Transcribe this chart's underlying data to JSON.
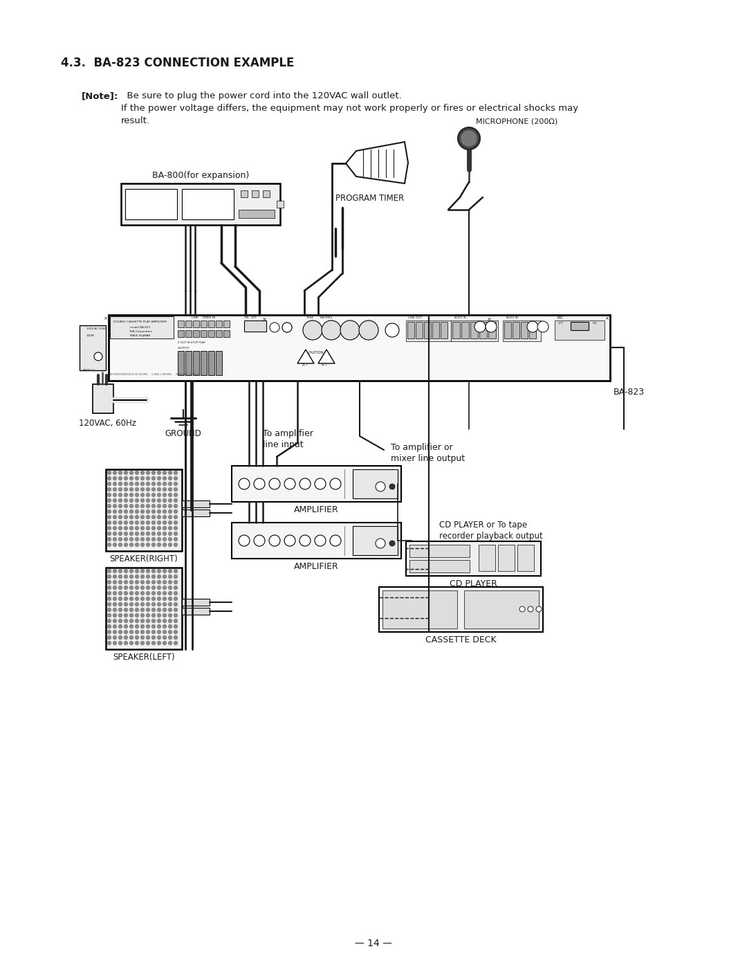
{
  "title": "4.3.  BA-823 CONNECTION EXAMPLE",
  "note_bold": "[Note]:",
  "note_line1": "  Be sure to plug the power cord into the 120VAC wall outlet.",
  "note_line2": "If the power voltage differs, the equipment may not work properly or fires or electrical shocks may",
  "note_line3": "result.",
  "page_number": "— 14 —",
  "bg_color": "#ffffff",
  "text_color": "#1a1a1a",
  "labels": {
    "ba800": "BA-800(for expansion)",
    "program_timer": "PROGRAM TIMER",
    "microphone": "MICROPHONE (200Ω)",
    "ba823": "BA-823",
    "ground": "GROUND",
    "power": "120VAC, 60Hz",
    "amp1_label1": "To amplifier",
    "amp1_label2": "line input",
    "amp2_label1": "To amplifier or",
    "amp2_label2": "mixer line output",
    "cd_label1": "CD PLAYER or To tape",
    "cd_label2": "recorder playback output",
    "amplifier1": "AMPLIFIER",
    "amplifier2": "AMPLIFIER",
    "speaker_right": "SPEAKER(RIGHT)",
    "speaker_left": "SPEAKER(LEFT)",
    "cd_player": "CD PLAYER",
    "cassette_deck": "CASSETTE DECK"
  }
}
